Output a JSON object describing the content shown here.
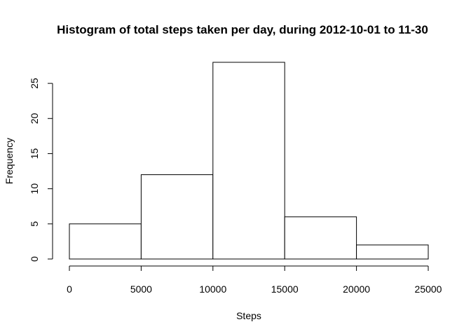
{
  "chart_data": {
    "type": "bar",
    "title": "Histogram of total steps taken per day, during 2012-10-01 to 11-30",
    "xlabel": "Steps",
    "ylabel": "Frequency",
    "bins": [
      {
        "from": 0,
        "to": 5000,
        "count": 5
      },
      {
        "from": 5000,
        "to": 10000,
        "count": 12
      },
      {
        "from": 10000,
        "to": 15000,
        "count": 28
      },
      {
        "from": 15000,
        "to": 20000,
        "count": 6
      },
      {
        "from": 20000,
        "to": 25000,
        "count": 2
      }
    ],
    "x_ticks": [
      0,
      5000,
      10000,
      15000,
      20000,
      25000
    ],
    "y_ticks": [
      0,
      5,
      10,
      15,
      20,
      25
    ],
    "xlim": [
      0,
      25000
    ],
    "ylim": [
      0,
      28
    ],
    "bar_fill": "#ffffff",
    "bar_stroke": "#000000",
    "grid": false,
    "legend": "none"
  }
}
